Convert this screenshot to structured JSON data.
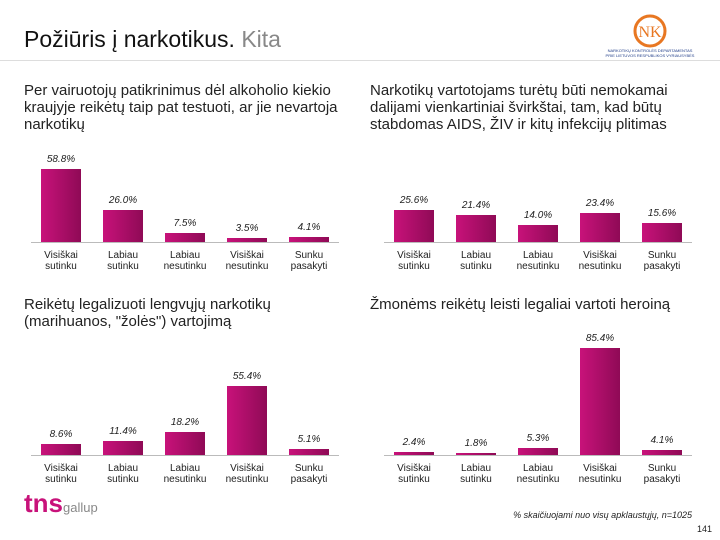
{
  "header": {
    "title": "Požiūris į narkotikus.",
    "subtitle": "Kita",
    "logo_line1": "NARKOTIKŲ KONTROLĖS DEPARTAMENTAS",
    "logo_line2": "PRIE LIETUVOS RESPUBLIKOS VYRIAUSYBĖS"
  },
  "chart_data": [
    {
      "type": "bar",
      "title": "Per vairuotojų patikrinimus dėl alkoholio kiekio kraujyje reikėtų taip pat testuoti, ar jie nevartoja narkotikų",
      "categories": [
        "Visiškai sutinku",
        "Labiau sutinku",
        "Labiau nesutinku",
        "Visiškai nesutinku",
        "Sunku pasakyti"
      ],
      "values": [
        58.8,
        26.0,
        7.5,
        3.5,
        4.1
      ],
      "value_labels": [
        "58.8%",
        "26.0%",
        "7.5%",
        "3.5%",
        "4.1%"
      ],
      "color": "#c8127a"
    },
    {
      "type": "bar",
      "title": "Narkotikų vartotojams turėtų būti nemokamai dalijami vienkartiniai švirkštai, tam, kad būtų stabdomas AIDS, ŽIV ir kitų infekcijų plitimas",
      "categories": [
        "Visiškai sutinku",
        "Labiau sutinku",
        "Labiau nesutinku",
        "Visiškai nesutinku",
        "Sunku pasakyti"
      ],
      "values": [
        25.6,
        21.4,
        14.0,
        23.4,
        15.6
      ],
      "value_labels": [
        "25.6%",
        "21.4%",
        "14.0%",
        "23.4%",
        "15.6%"
      ],
      "color": "#c8127a"
    },
    {
      "type": "bar",
      "title": "Reikėtų legalizuoti lengvųjų narkotikų (marihuanos, \"žolės\") vartojimą",
      "categories": [
        "Visiškai sutinku",
        "Labiau sutinku",
        "Labiau nesutinku",
        "Visiškai nesutinku",
        "Sunku pasakyti"
      ],
      "values": [
        8.6,
        11.4,
        18.2,
        55.4,
        5.1
      ],
      "value_labels": [
        "8.6%",
        "11.4%",
        "18.2%",
        "55.4%",
        "5.1%"
      ],
      "color": "#c8127a"
    },
    {
      "type": "bar",
      "title": "Žmonėms reikėtų leisti legaliai vartoti heroiną",
      "categories": [
        "Visiškai sutinku",
        "Labiau sutinku",
        "Labiau nesutinku",
        "Visiškai nesutinku",
        "Sunku pasakyti"
      ],
      "values": [
        2.4,
        1.8,
        5.3,
        85.4,
        4.1
      ],
      "value_labels": [
        "2.4%",
        "1.8%",
        "5.3%",
        "85.4%",
        "4.1%"
      ],
      "color": "#c8127a"
    }
  ],
  "footer": {
    "brand": "tns",
    "brand2": "gallup",
    "note": "% skaičiuojami nuo visų apklaustųjų, n=1025",
    "page": "141"
  }
}
